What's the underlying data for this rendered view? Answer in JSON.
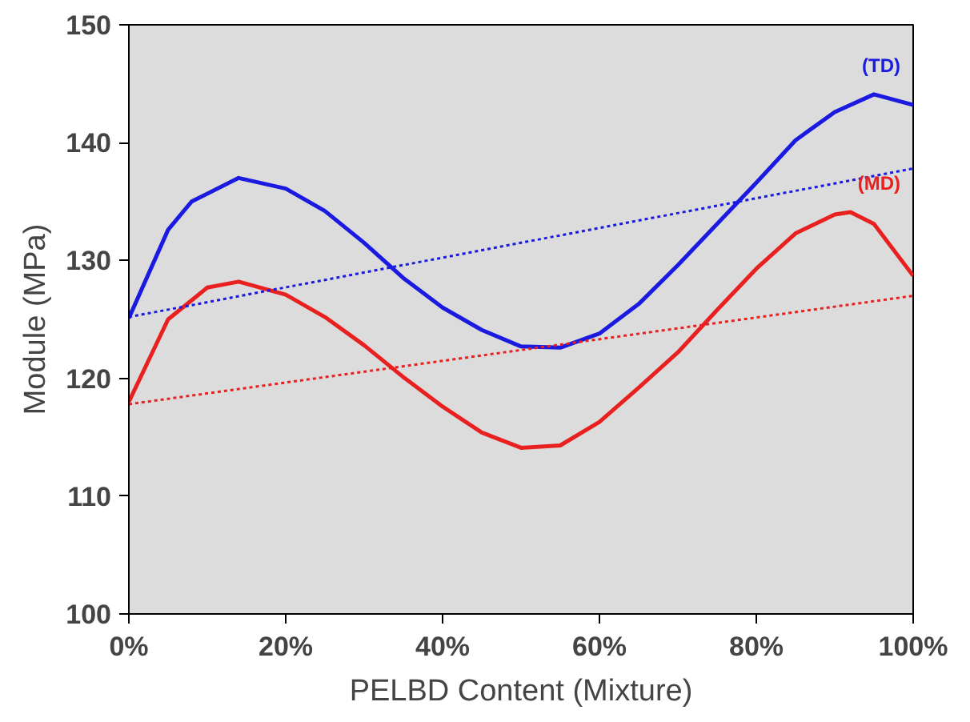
{
  "chart_data": {
    "type": "line",
    "xlabel": "PELBD Content (Mixture)",
    "ylabel": "Module (MPa)",
    "xlim": [
      0,
      100
    ],
    "ylim": [
      100,
      150
    ],
    "xticks": [
      {
        "value": 0,
        "label": "0%"
      },
      {
        "value": 20,
        "label": "20%"
      },
      {
        "value": 40,
        "label": "40%"
      },
      {
        "value": 60,
        "label": "60%"
      },
      {
        "value": 80,
        "label": "80%"
      },
      {
        "value": 100,
        "label": "100%"
      }
    ],
    "yticks": [
      100,
      110,
      120,
      130,
      140,
      150
    ],
    "grid": false,
    "line_style": "solid",
    "x": [
      0,
      5,
      8,
      14,
      20,
      25,
      30,
      35,
      40,
      45,
      50,
      55,
      60,
      65,
      70,
      75,
      80,
      85,
      90,
      95,
      100
    ],
    "series": [
      {
        "name": "(TD)",
        "color": "#1a1ae0",
        "values": [
          125.1,
          132.6,
          135,
          137,
          136.1,
          134.2,
          131.5,
          128.5,
          126,
          124.1,
          122.7,
          122.6,
          123.8,
          126.3,
          129.6,
          133.1,
          136.6,
          140.2,
          142.6,
          144.1,
          143.2
        ]
      },
      {
        "name": "(MD)",
        "color": "#e82020",
        "x": [
          0,
          5,
          10,
          14,
          20,
          25,
          30,
          35,
          40,
          45,
          50,
          55,
          60,
          65,
          70,
          75,
          80,
          85,
          90,
          92,
          95,
          100
        ],
        "values": [
          118,
          125,
          127.7,
          128.2,
          127.1,
          125.2,
          122.8,
          120.1,
          117.6,
          115.4,
          114.1,
          114.3,
          116.3,
          119.2,
          122.2,
          125.8,
          129.3,
          132.3,
          133.9,
          134.1,
          133.1,
          128.7
        ]
      },
      {
        "color": "#1a1ae0",
        "line_style": "dotted",
        "x": [
          0,
          100
        ],
        "values": [
          125.2,
          137.8
        ]
      },
      {
        "color": "#e82020",
        "line_style": "dotted",
        "x": [
          0,
          100
        ],
        "values": [
          117.8,
          127
        ]
      }
    ]
  }
}
